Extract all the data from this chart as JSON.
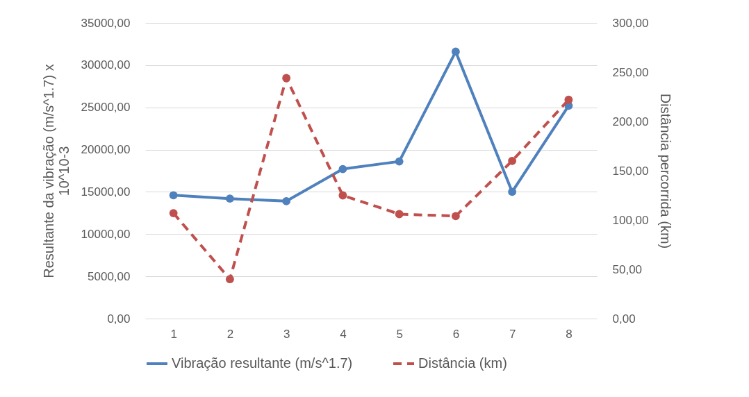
{
  "chart_data": {
    "type": "line",
    "categories": [
      "1",
      "2",
      "3",
      "4",
      "5",
      "6",
      "7",
      "8"
    ],
    "ylabel": "Resultante da vibração (m/s^1.7) x 10^10-3",
    "y2label": "Distância percorrida (km)",
    "ylim": [
      0,
      35000
    ],
    "yticks": [
      {
        "value": 0,
        "label": "0,00"
      },
      {
        "value": 5000,
        "label": "5000,00"
      },
      {
        "value": 10000,
        "label": "10000,00"
      },
      {
        "value": 15000,
        "label": "15000,00"
      },
      {
        "value": 20000,
        "label": "20000,00"
      },
      {
        "value": 25000,
        "label": "25000,00"
      },
      {
        "value": 30000,
        "label": "30000,00"
      },
      {
        "value": 35000,
        "label": "35000,00"
      }
    ],
    "y2lim": [
      0,
      300
    ],
    "y2ticks": [
      {
        "value": 0,
        "label": "0,00"
      },
      {
        "value": 50,
        "label": "50,00"
      },
      {
        "value": 100,
        "label": "100,00"
      },
      {
        "value": 150,
        "label": "150,00"
      },
      {
        "value": 200,
        "label": "200,00"
      },
      {
        "value": 250,
        "label": "250,00"
      },
      {
        "value": 300,
        "label": "300,00"
      }
    ],
    "series": [
      {
        "name": "Vibração resultante (m/s^1.7)",
        "color": "#4f81bd",
        "line_style": "solid",
        "values": [
          14600,
          14200,
          13900,
          17700,
          18600,
          31600,
          15000,
          25200
        ]
      },
      {
        "name": "Distância (km)",
        "color": "#c0504d",
        "line_style": "dashed",
        "axis": "y2",
        "values": [
          107,
          40,
          244,
          125,
          106,
          104,
          160,
          222
        ]
      }
    ],
    "grid": "y",
    "legend": "bottom",
    "marker": "circle"
  }
}
